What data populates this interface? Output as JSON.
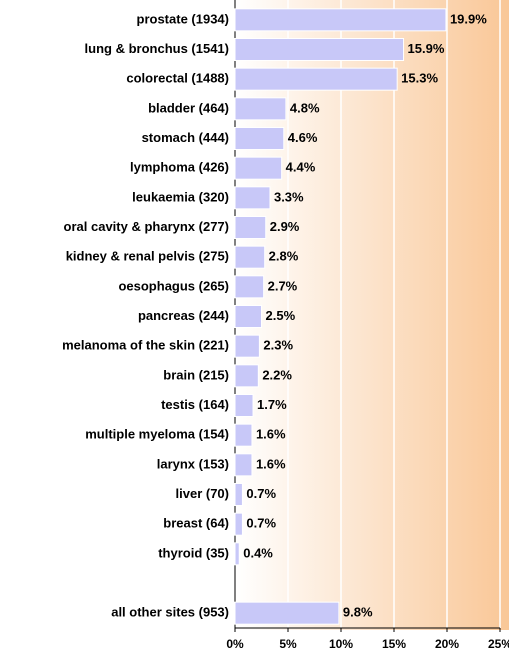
{
  "chart_data": {
    "type": "bar",
    "orientation": "horizontal",
    "categories": [
      "prostate (1934)",
      "lung & bronchus (1541)",
      "colorectal (1488)",
      "bladder (464)",
      "stomach (444)",
      "lymphoma (426)",
      "leukaemia (320)",
      "oral cavity & pharynx (277)",
      "kidney & renal pelvis (275)",
      "oesophagus (265)",
      "pancreas (244)",
      "melanoma of the skin (221)",
      "brain (215)",
      "testis (164)",
      "multiple myeloma (154)",
      "larynx (153)",
      "liver (70)",
      "breast (64)",
      "thyroid (35)",
      null,
      "all other sites (953)"
    ],
    "values": [
      19.9,
      15.9,
      15.3,
      4.8,
      4.6,
      4.4,
      3.3,
      2.9,
      2.8,
      2.7,
      2.5,
      2.3,
      2.2,
      1.7,
      1.6,
      1.6,
      0.7,
      0.7,
      0.4,
      null,
      9.8
    ],
    "value_labels": [
      "19.9%",
      "15.9%",
      "15.3%",
      "4.8%",
      "4.6%",
      "4.4%",
      "3.3%",
      "2.9%",
      "2.8%",
      "2.7%",
      "2.5%",
      "2.3%",
      "2.2%",
      "1.7%",
      "1.6%",
      "1.6%",
      "0.7%",
      "0.7%",
      "0.4%",
      null,
      "9.8%"
    ],
    "color": "#c8c8f8",
    "xlim": [
      0,
      25
    ],
    "xticks": [
      {
        "value": 0,
        "label": "0%"
      },
      {
        "value": 5,
        "label": "5%"
      },
      {
        "value": 10,
        "label": "10%"
      },
      {
        "value": 15,
        "label": "15%"
      },
      {
        "value": 20,
        "label": "20%"
      },
      {
        "value": 25,
        "label": "25%"
      }
    ],
    "grid": true
  }
}
